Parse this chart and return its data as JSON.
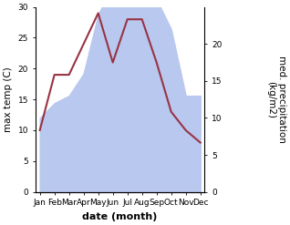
{
  "months": [
    "Jan",
    "Feb",
    "Mar",
    "Apr",
    "May",
    "Jun",
    "Jul",
    "Aug",
    "Sep",
    "Oct",
    "Nov",
    "Dec"
  ],
  "x": [
    0,
    1,
    2,
    3,
    4,
    5,
    6,
    7,
    8,
    9,
    10,
    11
  ],
  "temp_max": [
    10,
    19,
    19,
    24,
    29,
    21,
    28,
    28,
    21,
    13,
    10,
    8
  ],
  "precip_kg": [
    10,
    12,
    13,
    16,
    24,
    28,
    29,
    29,
    26,
    22,
    13,
    13
  ],
  "temp_ylim": [
    0,
    30
  ],
  "precip_ylim": [
    0,
    25
  ],
  "right_yticks": [
    0,
    5,
    10,
    15,
    20
  ],
  "left_yticks": [
    0,
    5,
    10,
    15,
    20,
    25,
    30
  ],
  "fill_color": "#b8c8ee",
  "fill_alpha": 1.0,
  "line_color": "#993344",
  "line_width": 1.5,
  "xlabel": "date (month)",
  "ylabel_left": "max temp (C)",
  "ylabel_right": "med. precipitation\n(kg/m2)",
  "bg_color": "#ffffff",
  "tick_fontsize": 6.5,
  "label_fontsize": 7.5,
  "xlabel_fontsize": 8
}
